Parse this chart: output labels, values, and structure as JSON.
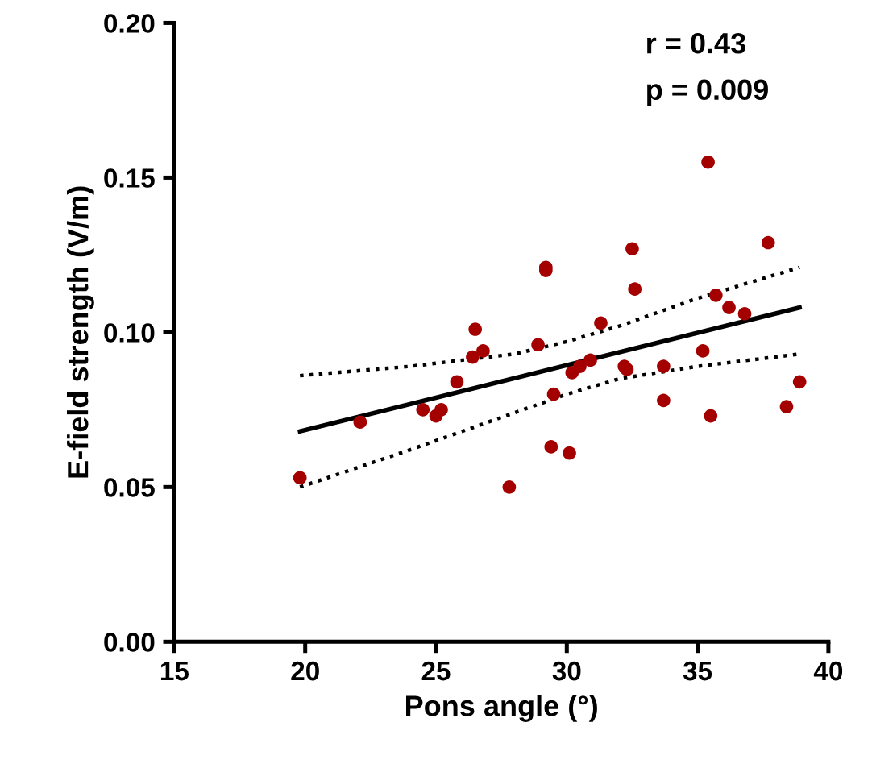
{
  "chart_data": {
    "type": "scatter",
    "xlabel": "Pons angle (°)",
    "ylabel": "E-field strength (V/m)",
    "xlim": [
      15,
      40
    ],
    "xticks": [
      15,
      20,
      25,
      30,
      35,
      40
    ],
    "ylim": [
      0,
      0.2
    ],
    "yticks": [
      {
        "value": 0,
        "label": "0.00"
      },
      {
        "value": 0.05,
        "label": "0.05"
      },
      {
        "value": 0.1,
        "label": "0.10"
      },
      {
        "value": 0.15,
        "label": "0.15"
      },
      {
        "value": 0.2,
        "label": "0.20"
      }
    ],
    "grid": false,
    "legend": false,
    "annotations": [
      "r = 0.43",
      "p = 0.009"
    ],
    "series": [
      {
        "marker": "circle",
        "color": "#a50000",
        "x": [
          19.8,
          22.1,
          24.5,
          25.0,
          25.2,
          25.8,
          26.4,
          26.5,
          26.8,
          27.8,
          28.9,
          29.2,
          29.2,
          29.4,
          29.5,
          30.1,
          30.2,
          30.5,
          30.9,
          31.3,
          32.2,
          32.3,
          32.5,
          32.6,
          33.7,
          33.7,
          35.2,
          35.4,
          35.5,
          35.7,
          36.2,
          36.8,
          37.7,
          38.4,
          38.9
        ],
        "values": [
          0.053,
          0.071,
          0.075,
          0.073,
          0.075,
          0.084,
          0.092,
          0.101,
          0.094,
          0.05,
          0.096,
          0.121,
          0.12,
          0.063,
          0.08,
          0.061,
          0.087,
          0.089,
          0.091,
          0.103,
          0.089,
          0.088,
          0.127,
          0.114,
          0.078,
          0.089,
          0.094,
          0.155,
          0.073,
          0.112,
          0.108,
          0.106,
          0.129,
          0.076,
          0.084
        ]
      },
      {
        "type": "line",
        "marker": "none",
        "color": "#000000",
        "line_style": "solid",
        "x": [
          19.8,
          38.9
        ],
        "values": [
          0.068,
          0.108
        ]
      },
      {
        "type": "line",
        "color": "#000000",
        "line_style": "dotted",
        "x": [
          19.8,
          24,
          28,
          30,
          32,
          35,
          38.9
        ],
        "values": [
          0.086,
          0.089,
          0.093,
          0.097,
          0.102,
          0.111,
          0.121
        ]
      },
      {
        "type": "line",
        "color": "#000000",
        "line_style": "dotted",
        "x": [
          19.8,
          24,
          28,
          30,
          32,
          35,
          38.9
        ],
        "values": [
          0.05,
          0.062,
          0.074,
          0.08,
          0.085,
          0.089,
          0.093
        ]
      }
    ]
  }
}
